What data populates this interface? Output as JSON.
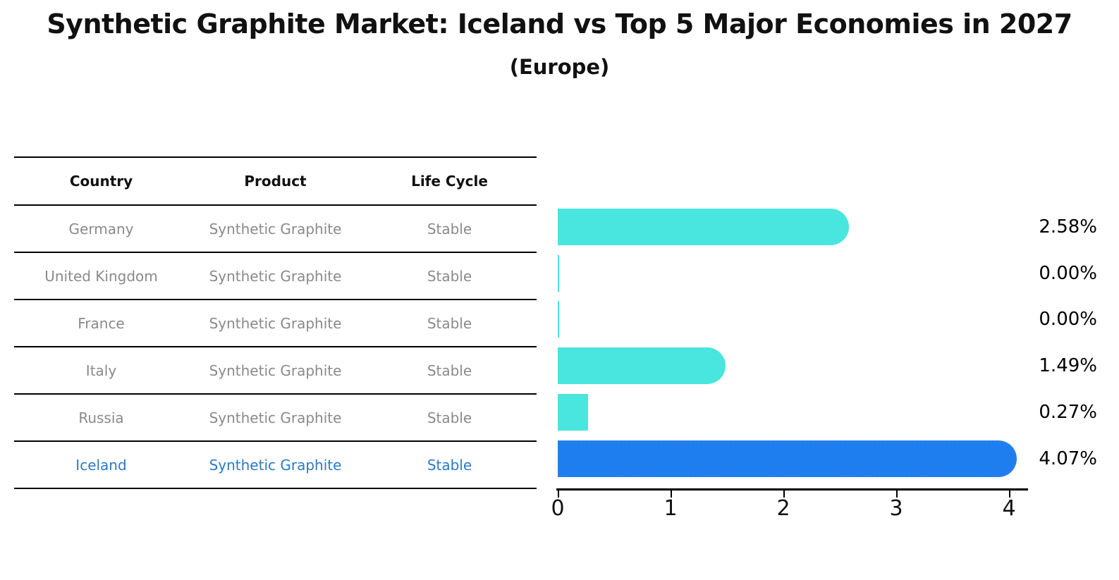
{
  "title": "Synthetic Graphite Market: Iceland vs Top 5 Major Economies in 2027",
  "subtitle": "(Europe)",
  "table": {
    "headers": [
      "Country",
      "Product",
      "Life Cycle"
    ],
    "rows": [
      {
        "country": "Germany",
        "product": "Synthetic Graphite",
        "life_cycle": "Stable",
        "highlight": false
      },
      {
        "country": "United Kingdom",
        "product": "Synthetic Graphite",
        "life_cycle": "Stable",
        "highlight": false
      },
      {
        "country": "France",
        "product": "Synthetic Graphite",
        "life_cycle": "Stable",
        "highlight": false
      },
      {
        "country": "Italy",
        "product": "Synthetic Graphite",
        "life_cycle": "Stable",
        "highlight": false
      },
      {
        "country": "Russia",
        "product": "Synthetic Graphite",
        "life_cycle": "Stable",
        "highlight": false
      },
      {
        "country": "Iceland",
        "product": "Synthetic Graphite",
        "life_cycle": "Stable",
        "highlight": true
      }
    ]
  },
  "chart_data": {
    "type": "bar",
    "orientation": "horizontal",
    "title": "Synthetic Graphite Market: Iceland vs Top 5 Major Economies in 2027",
    "subtitle": "(Europe)",
    "categories": [
      "Germany",
      "United Kingdom",
      "France",
      "Italy",
      "Russia",
      "Iceland"
    ],
    "values": [
      2.58,
      0.0,
      0.0,
      1.49,
      0.27,
      4.07
    ],
    "value_labels": [
      "2.58%",
      "0.00%",
      "0.00%",
      "1.49%",
      "0.27%",
      "4.07%"
    ],
    "x_ticks": [
      0,
      1,
      2,
      3,
      4
    ],
    "xlim": [
      0,
      4.18
    ],
    "grid": false,
    "legend": "none",
    "bar_color": "#48e6de",
    "highlight_color": "#1e7ef0",
    "highlight_index": 5
  },
  "colors": {
    "row_text": "#8a8a8a",
    "header_text": "#111111",
    "highlight_text": "#2b7ac5",
    "axis": "#000000"
  }
}
